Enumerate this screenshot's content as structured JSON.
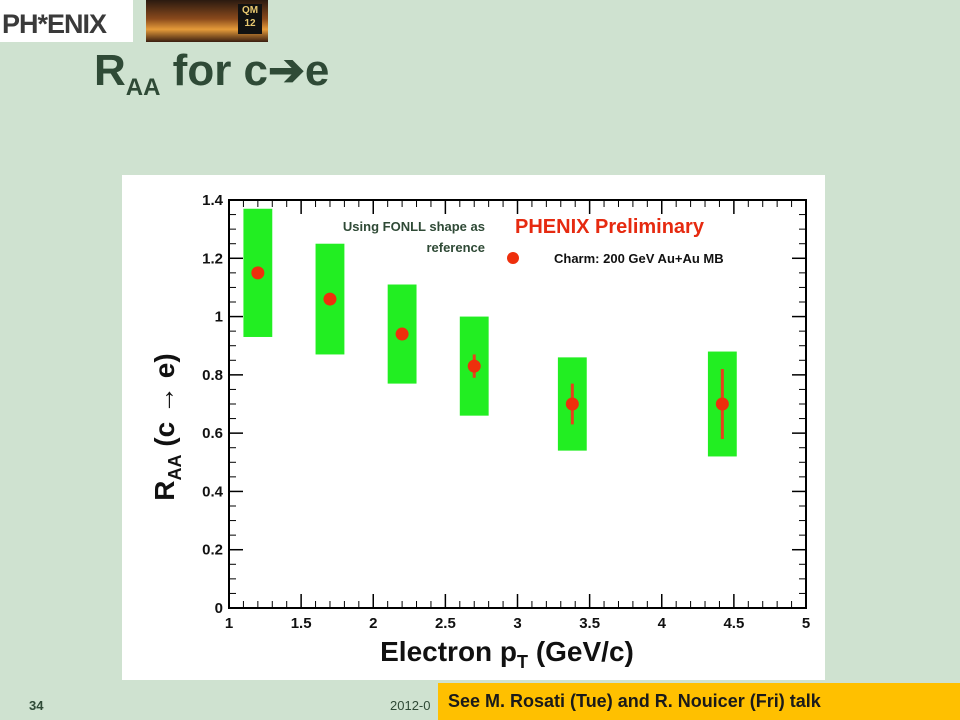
{
  "header": {
    "logo_text": "PH*ENIX",
    "conference_badge": "QM 12",
    "title_main": "R",
    "title_sub": "AA",
    "title_rest": " for c",
    "title_arrow": "➔",
    "title_end": "e"
  },
  "chart_data": {
    "type": "scatter",
    "xlabel_main": "Electron p",
    "xlabel_sub": "T",
    "xlabel_units": " (GeV/c)",
    "ylabel_main": "R",
    "ylabel_sub": "AA",
    "ylabel_rest": " (c → e)",
    "xlim": [
      1,
      5
    ],
    "ylim": [
      0,
      1.4
    ],
    "x_ticks": [
      "1",
      "1.5",
      "2",
      "2.5",
      "3",
      "3.5",
      "4",
      "4.5",
      "5"
    ],
    "y_ticks": [
      "0",
      "0.2",
      "0.4",
      "0.6",
      "0.8",
      "1",
      "1.2",
      "1.4"
    ],
    "grid": false,
    "legend_position": "top-right",
    "legend_title": "PHENIX Preliminary",
    "annotation": [
      "Using FONLL shape as",
      "reference"
    ],
    "colors": {
      "marker": "#ee2f0c",
      "systematic_band": "#22ee22",
      "title_red": "#e62a10"
    },
    "series": [
      {
        "name": "Charm: 200 GeV Au+Au MB",
        "points": [
          {
            "x": 1.2,
            "y": 1.15,
            "sys_low": 0.93,
            "sys_high": 1.37,
            "xmin": 1.1,
            "xmax": 1.3,
            "stat_low": 1.15,
            "stat_high": 1.15
          },
          {
            "x": 1.7,
            "y": 1.06,
            "sys_low": 0.87,
            "sys_high": 1.25,
            "xmin": 1.6,
            "xmax": 1.8,
            "stat_low": 1.06,
            "stat_high": 1.06
          },
          {
            "x": 2.2,
            "y": 0.94,
            "sys_low": 0.77,
            "sys_high": 1.11,
            "xmin": 2.1,
            "xmax": 2.3,
            "stat_low": 0.94,
            "stat_high": 0.94
          },
          {
            "x": 2.7,
            "y": 0.83,
            "sys_low": 0.66,
            "sys_high": 1.0,
            "xmin": 2.6,
            "xmax": 2.8,
            "stat_low": 0.79,
            "stat_high": 0.87
          },
          {
            "x": 3.38,
            "y": 0.7,
            "sys_low": 0.54,
            "sys_high": 0.86,
            "xmin": 3.28,
            "xmax": 3.48,
            "stat_low": 0.63,
            "stat_high": 0.77
          },
          {
            "x": 4.42,
            "y": 0.7,
            "sys_low": 0.52,
            "sys_high": 0.88,
            "xmin": 4.32,
            "xmax": 4.52,
            "stat_low": 0.58,
            "stat_high": 0.82
          }
        ]
      }
    ]
  },
  "footer": {
    "slide_number": "34",
    "date_fragment": "2012-0",
    "talk_note": "See M. Rosati (Tue) and R. Nouicer (Fri) talk"
  }
}
